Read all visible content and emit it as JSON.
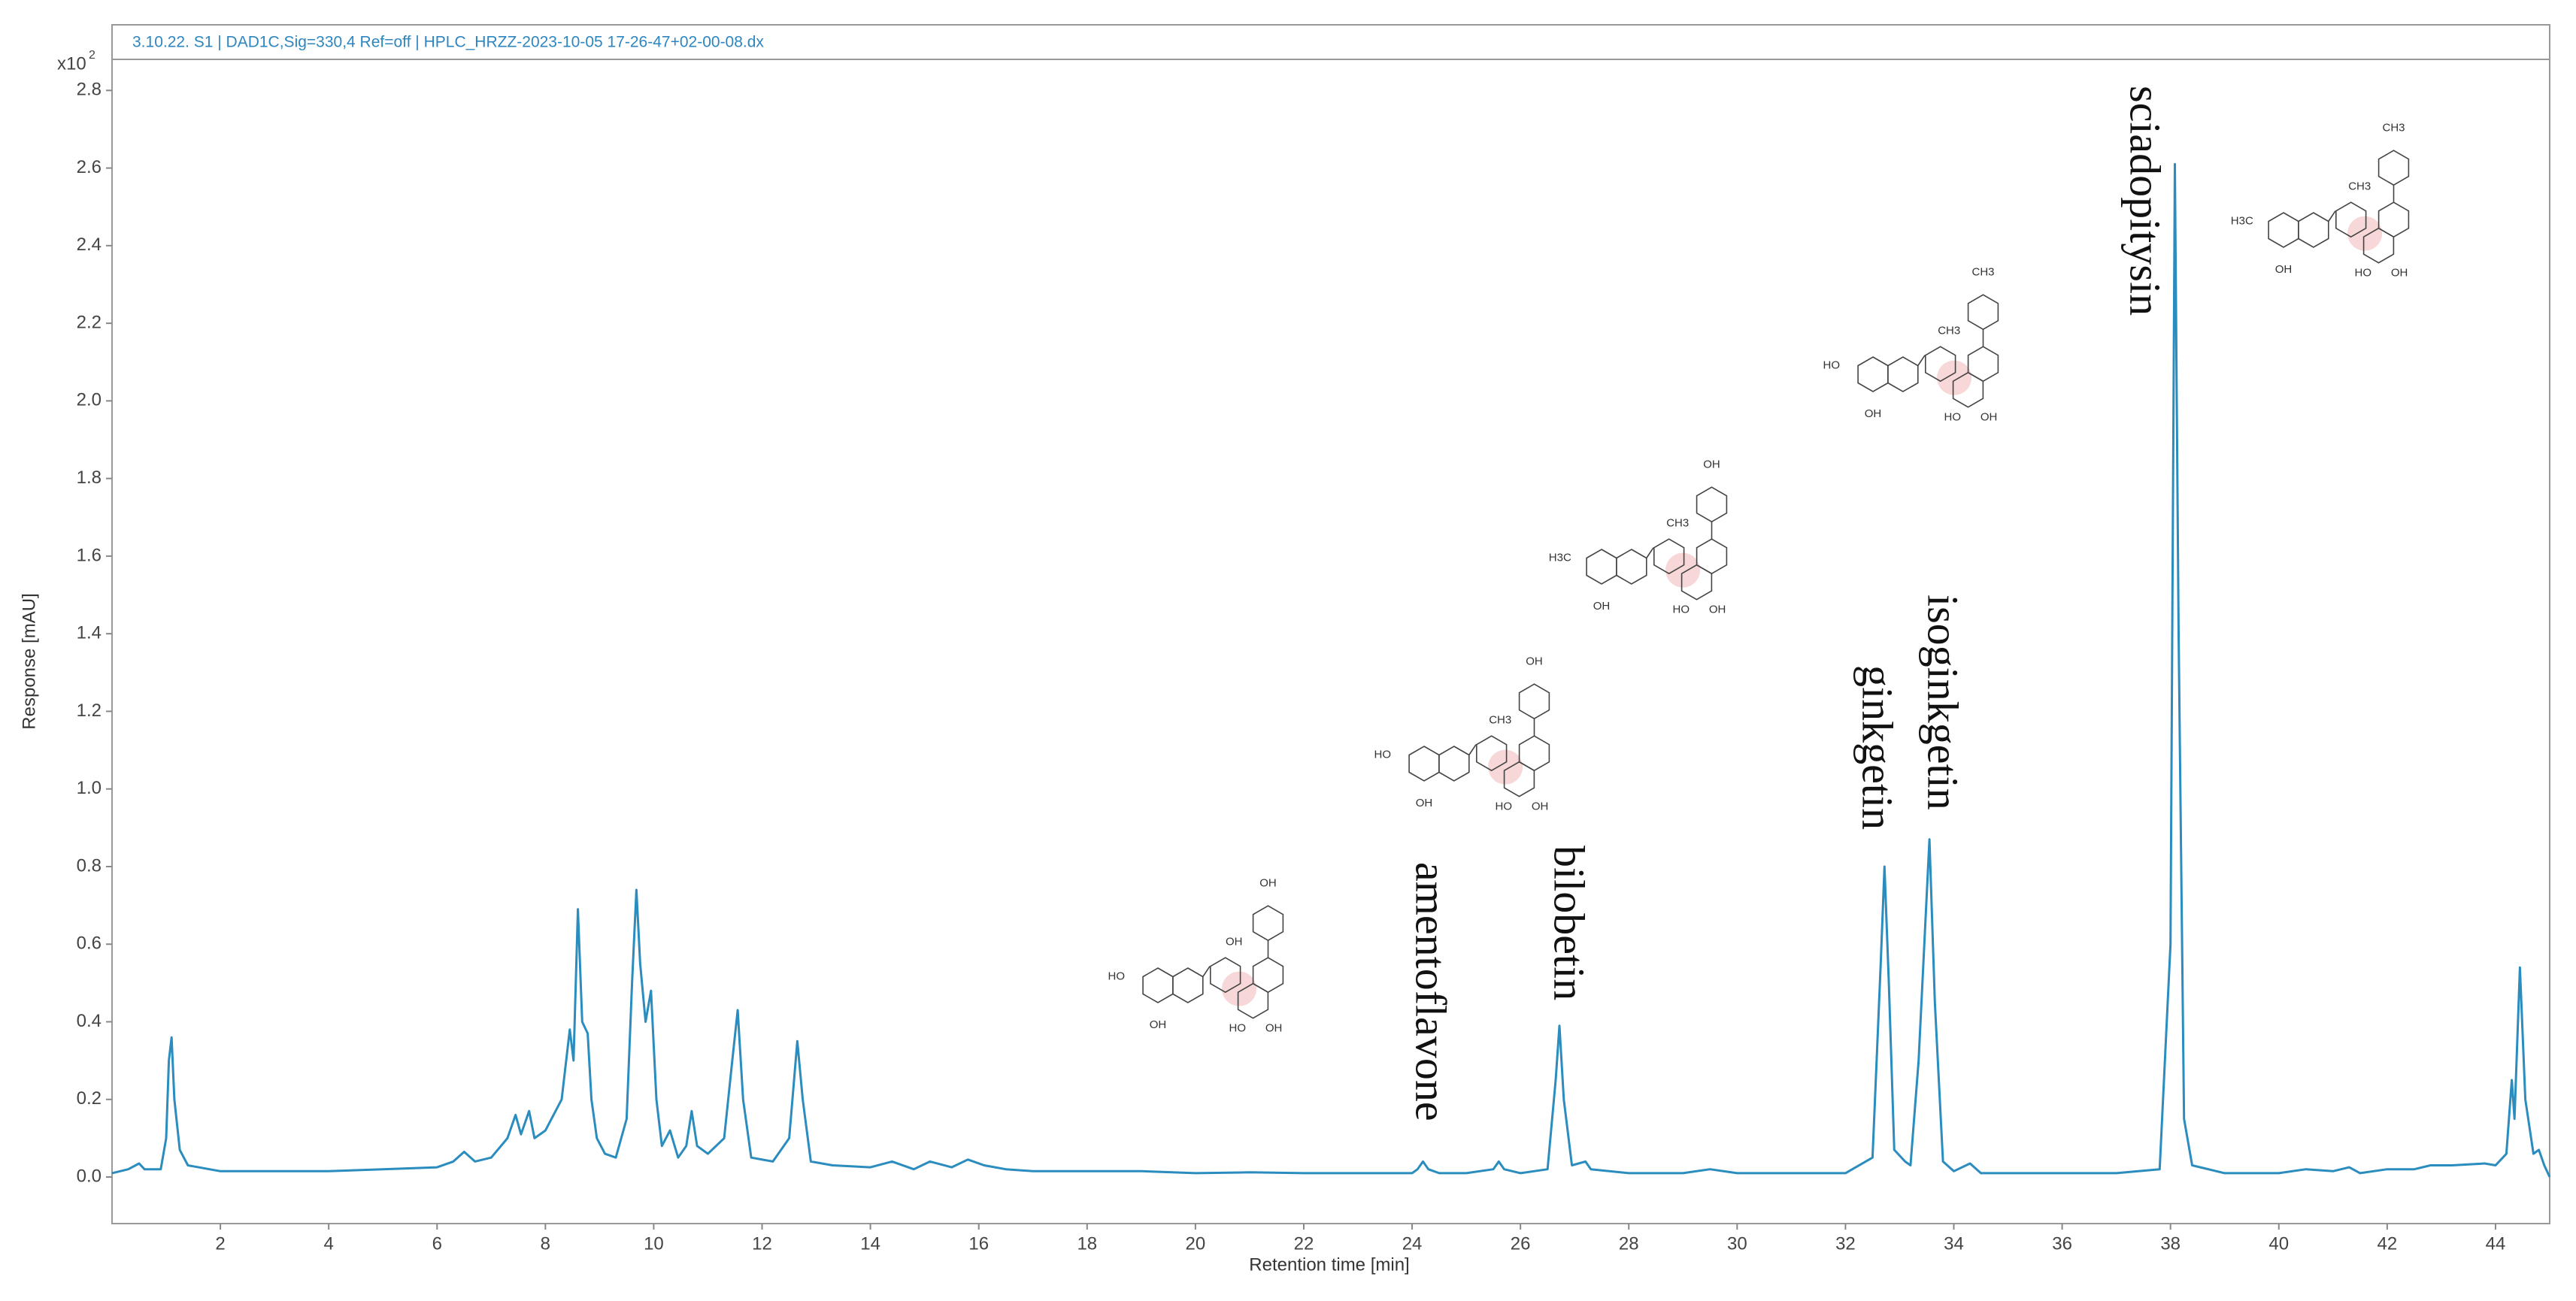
{
  "chart_data": {
    "type": "line",
    "header": "3.10.22. S1 | DAD1C,Sig=330,4 Ref=off | HPLC_HRZZ-2023-10-05 17-26-47+02-00-08.dx",
    "y_multiplier": {
      "base": "x10",
      "exponent": "2"
    },
    "x_label": "Retention time [min]",
    "y_label": "Response [mAU]",
    "color": "#2b8cbe",
    "xlim": [
      0,
      45
    ],
    "ylim": [
      -0.12,
      2.88
    ],
    "xticks": [
      2,
      4,
      6,
      8,
      10,
      12,
      14,
      16,
      18,
      20,
      22,
      24,
      26,
      28,
      30,
      32,
      34,
      36,
      38,
      40,
      42,
      44
    ],
    "yticks": [
      {
        "value": 0,
        "label": "0.0"
      },
      0.2,
      0.4,
      0.6,
      0.8,
      {
        "value": 1,
        "label": "1.0"
      },
      1.2,
      1.4,
      1.6,
      1.8,
      {
        "value": 2,
        "label": "2.0"
      },
      2.2,
      2.4,
      2.6,
      2.8
    ],
    "x": [
      0,
      0.3,
      0.5,
      0.6,
      0.9,
      1.0,
      1.05,
      1.1,
      1.15,
      1.25,
      1.4,
      2,
      3,
      4,
      5,
      6,
      6.3,
      6.5,
      6.7,
      7,
      7.3,
      7.45,
      7.55,
      7.7,
      7.8,
      8.0,
      8.3,
      8.45,
      8.52,
      8.6,
      8.68,
      8.78,
      8.85,
      8.95,
      9.1,
      9.3,
      9.5,
      9.6,
      9.68,
      9.75,
      9.85,
      9.95,
      10.05,
      10.15,
      10.3,
      10.45,
      10.6,
      10.7,
      10.8,
      11.0,
      11.3,
      11.45,
      11.55,
      11.65,
      11.8,
      12.2,
      12.5,
      12.65,
      12.75,
      12.9,
      13.3,
      14,
      14.4,
      14.8,
      15.1,
      15.5,
      15.8,
      16.1,
      16.5,
      17,
      18,
      19,
      20,
      21,
      22,
      23,
      24,
      24.1,
      24.2,
      24.3,
      24.5,
      25,
      25.5,
      25.6,
      25.7,
      26,
      26.5,
      26.65,
      26.72,
      26.8,
      26.95,
      27.2,
      27.3,
      28,
      29,
      29.5,
      30,
      31,
      32,
      32.5,
      32.65,
      32.72,
      32.8,
      32.9,
      33.1,
      33.2,
      33.35,
      33.55,
      33.65,
      33.8,
      34,
      34.3,
      34.5,
      35,
      36,
      37,
      37.8,
      38.0,
      38.08,
      38.15,
      38.25,
      38.4,
      39,
      40,
      40.5,
      41,
      41.3,
      41.5,
      42,
      42.5,
      42.8,
      43.2,
      43.8,
      44.0,
      44.2,
      44.3,
      44.35,
      44.45,
      44.55,
      44.7,
      44.8,
      44.9,
      45
    ],
    "values": [
      0.01,
      0.02,
      0.035,
      0.02,
      0.02,
      0.1,
      0.3,
      0.36,
      0.2,
      0.07,
      0.03,
      0.015,
      0.015,
      0.015,
      0.02,
      0.025,
      0.04,
      0.065,
      0.04,
      0.05,
      0.1,
      0.16,
      0.11,
      0.17,
      0.1,
      0.12,
      0.2,
      0.38,
      0.3,
      0.69,
      0.4,
      0.37,
      0.2,
      0.1,
      0.06,
      0.05,
      0.15,
      0.5,
      0.74,
      0.55,
      0.4,
      0.48,
      0.2,
      0.08,
      0.12,
      0.05,
      0.08,
      0.17,
      0.08,
      0.06,
      0.1,
      0.3,
      0.43,
      0.2,
      0.05,
      0.04,
      0.1,
      0.35,
      0.2,
      0.04,
      0.03,
      0.025,
      0.04,
      0.02,
      0.04,
      0.025,
      0.045,
      0.03,
      0.02,
      0.015,
      0.015,
      0.015,
      0.01,
      0.012,
      0.01,
      0.01,
      0.01,
      0.02,
      0.04,
      0.02,
      0.01,
      0.01,
      0.02,
      0.04,
      0.02,
      0.01,
      0.02,
      0.25,
      0.39,
      0.2,
      0.03,
      0.04,
      0.02,
      0.01,
      0.01,
      0.02,
      0.01,
      0.01,
      0.01,
      0.05,
      0.55,
      0.8,
      0.5,
      0.07,
      0.04,
      0.03,
      0.3,
      0.87,
      0.45,
      0.04,
      0.015,
      0.035,
      0.01,
      0.01,
      0.01,
      0.01,
      0.02,
      0.6,
      2.61,
      1.4,
      0.15,
      0.03,
      0.01,
      0.01,
      0.02,
      0.015,
      0.025,
      0.01,
      0.02,
      0.02,
      0.03,
      0.03,
      0.035,
      0.03,
      0.06,
      0.25,
      0.15,
      0.54,
      0.2,
      0.06,
      0.07,
      0.03,
      0
    ],
    "annotations": [
      "amentoflavone",
      "bilobetin",
      "ginkgetin",
      "isoginkgetin",
      "sciadopitysin"
    ],
    "structures": [
      {
        "labels": [
          "HO",
          "OH",
          "OH",
          "HO",
          "OH",
          "OH"
        ]
      },
      {
        "labels": [
          "HO",
          "OH",
          "CH3",
          "HO",
          "OH",
          "OH"
        ]
      },
      {
        "labels": [
          "H3C",
          "OH",
          "CH3",
          "HO",
          "OH",
          "OH"
        ]
      },
      {
        "labels": [
          "HO",
          "OH",
          "CH3",
          "HO",
          "OH",
          "CH3"
        ]
      },
      {
        "labels": [
          "H3C",
          "OH",
          "CH3",
          "HO",
          "OH",
          "CH3"
        ]
      }
    ]
  }
}
